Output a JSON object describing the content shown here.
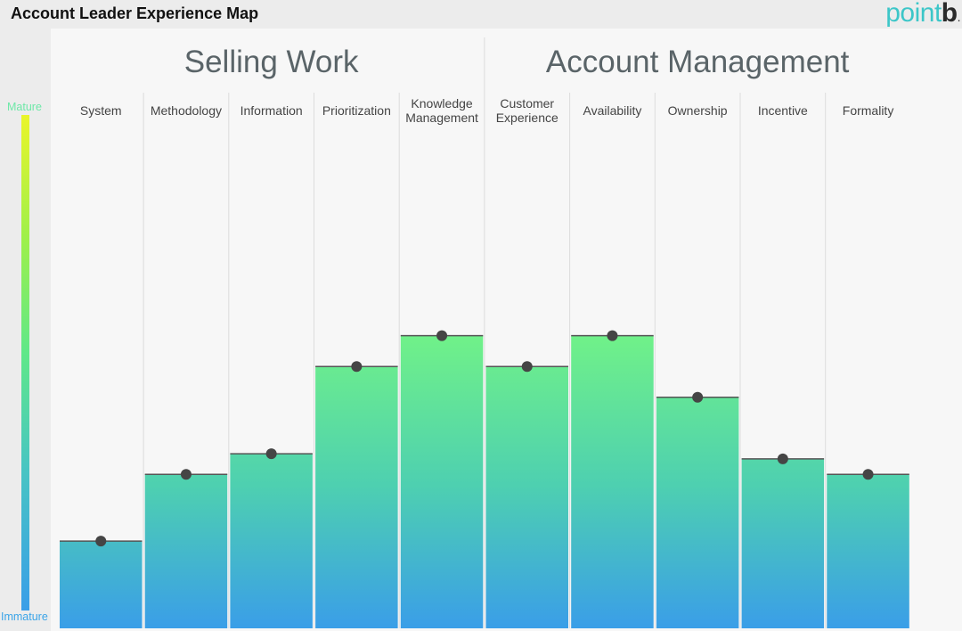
{
  "header": {
    "title": "Account Leader Experience Map",
    "logo_main": "point",
    "logo_accent": "b",
    "logo_dot": "."
  },
  "scale": {
    "top_label": "Mature",
    "bottom_label": "Immature",
    "top_color": "#6ee8a8",
    "bottom_color": "#3aa4e8"
  },
  "colors": {
    "bar_top": "#6ff08a",
    "bar_bottom": "#3a9ee8",
    "marker": "#454545"
  },
  "chart_data": {
    "type": "bar",
    "title": "Account Leader Experience Map",
    "groups": [
      {
        "name": "Selling Work",
        "categories": [
          "System",
          "Methodology",
          "Information",
          "Prioritization",
          "Knowledge Management"
        ]
      },
      {
        "name": "Account Management",
        "categories": [
          "Customer Experience",
          "Availability",
          "Ownership",
          "Incentive",
          "Formality"
        ]
      }
    ],
    "categories": [
      "System",
      "Methodology",
      "Information",
      "Prioritization",
      "Knowledge Management",
      "Customer Experience",
      "Availability",
      "Ownership",
      "Incentive",
      "Formality"
    ],
    "values": [
      17,
      30,
      34,
      51,
      57,
      51,
      57,
      45,
      33,
      30
    ],
    "ylim": [
      0,
      100
    ],
    "ylabel": "",
    "xlabel": "",
    "scale_top": "Mature",
    "scale_bottom": "Immature",
    "grid": false
  }
}
